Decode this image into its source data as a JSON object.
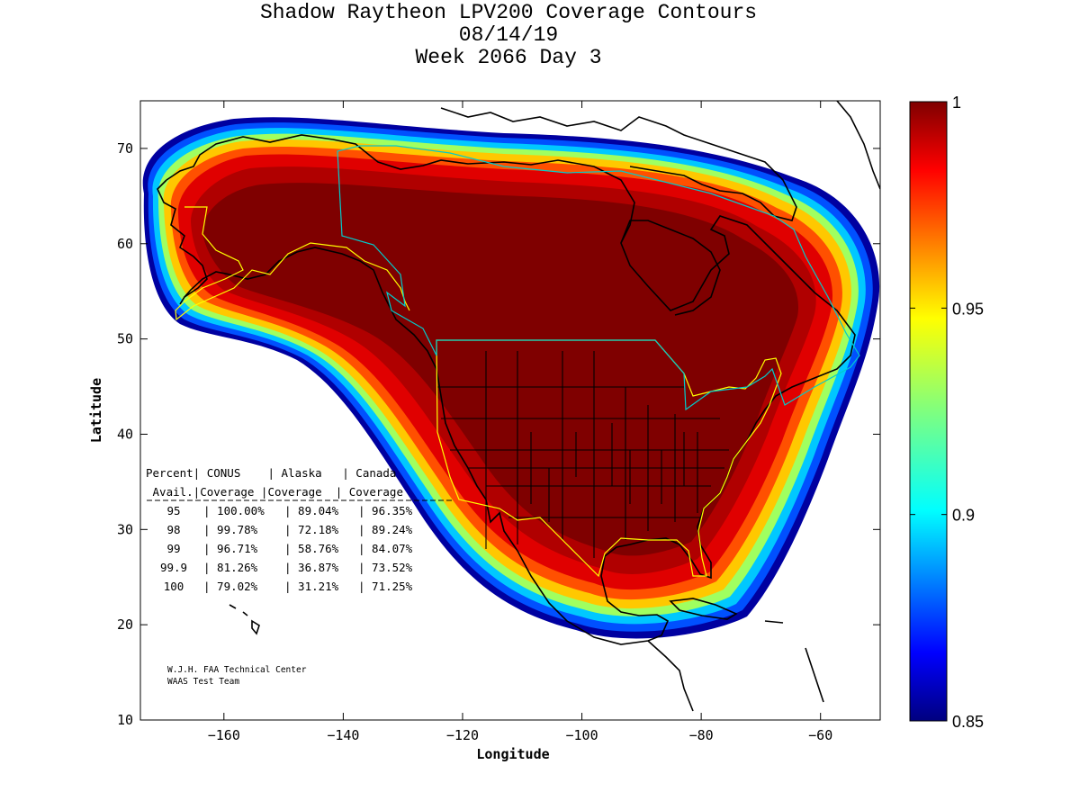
{
  "chart_data": {
    "type": "heatmap",
    "title": [
      "Shadow Raytheon LPV200 Coverage Contours",
      "08/14/19",
      "Week 2066 Day 3"
    ],
    "xlabel": "Longitude",
    "ylabel": "Latitude",
    "xlim": [
      -174,
      -50
    ],
    "ylim": [
      10,
      75
    ],
    "xticks": [
      -160,
      -140,
      -120,
      -100,
      -80,
      -60
    ],
    "yticks": [
      10,
      20,
      30,
      40,
      50,
      60,
      70
    ],
    "colorbar": {
      "min": 0.85,
      "max": 1,
      "ticks": [
        "0.85",
        "0.9",
        "0.95",
        "1"
      ],
      "colormap": "jet"
    },
    "value_meaning": "availability fraction",
    "coverage_table": {
      "header1": "Percent| CONUS    | Alaska   | Canada",
      "header2": " Avail.|Coverage |Coverage  | Coverage",
      "columns": [
        "Percent Avail.",
        "CONUS Coverage",
        "Alaska Coverage",
        "Canada Coverage"
      ],
      "rows": [
        {
          "avail": "95",
          "conus": "100.00%",
          "alaska": "89.04%",
          "canada": "96.35%"
        },
        {
          "avail": "98",
          "conus": "99.78%",
          "alaska": "72.18%",
          "canada": "89.24%"
        },
        {
          "avail": "99",
          "conus": "96.71%",
          "alaska": "58.76%",
          "canada": "84.07%"
        },
        {
          "avail": "99.9",
          "conus": "81.26%",
          "alaska": "36.87%",
          "canada": "73.52%"
        },
        {
          "avail": "100",
          "conus": "79.02%",
          "alaska": "31.21%",
          "canada": "71.25%"
        }
      ]
    }
  },
  "credits": {
    "line1": "W.J.H. FAA Technical Center",
    "line2": "WAAS Test Team"
  },
  "colors": {
    "conus_boundary": "#ffff00",
    "canada_boundary": "#00cccc",
    "coastline": "#000000"
  }
}
